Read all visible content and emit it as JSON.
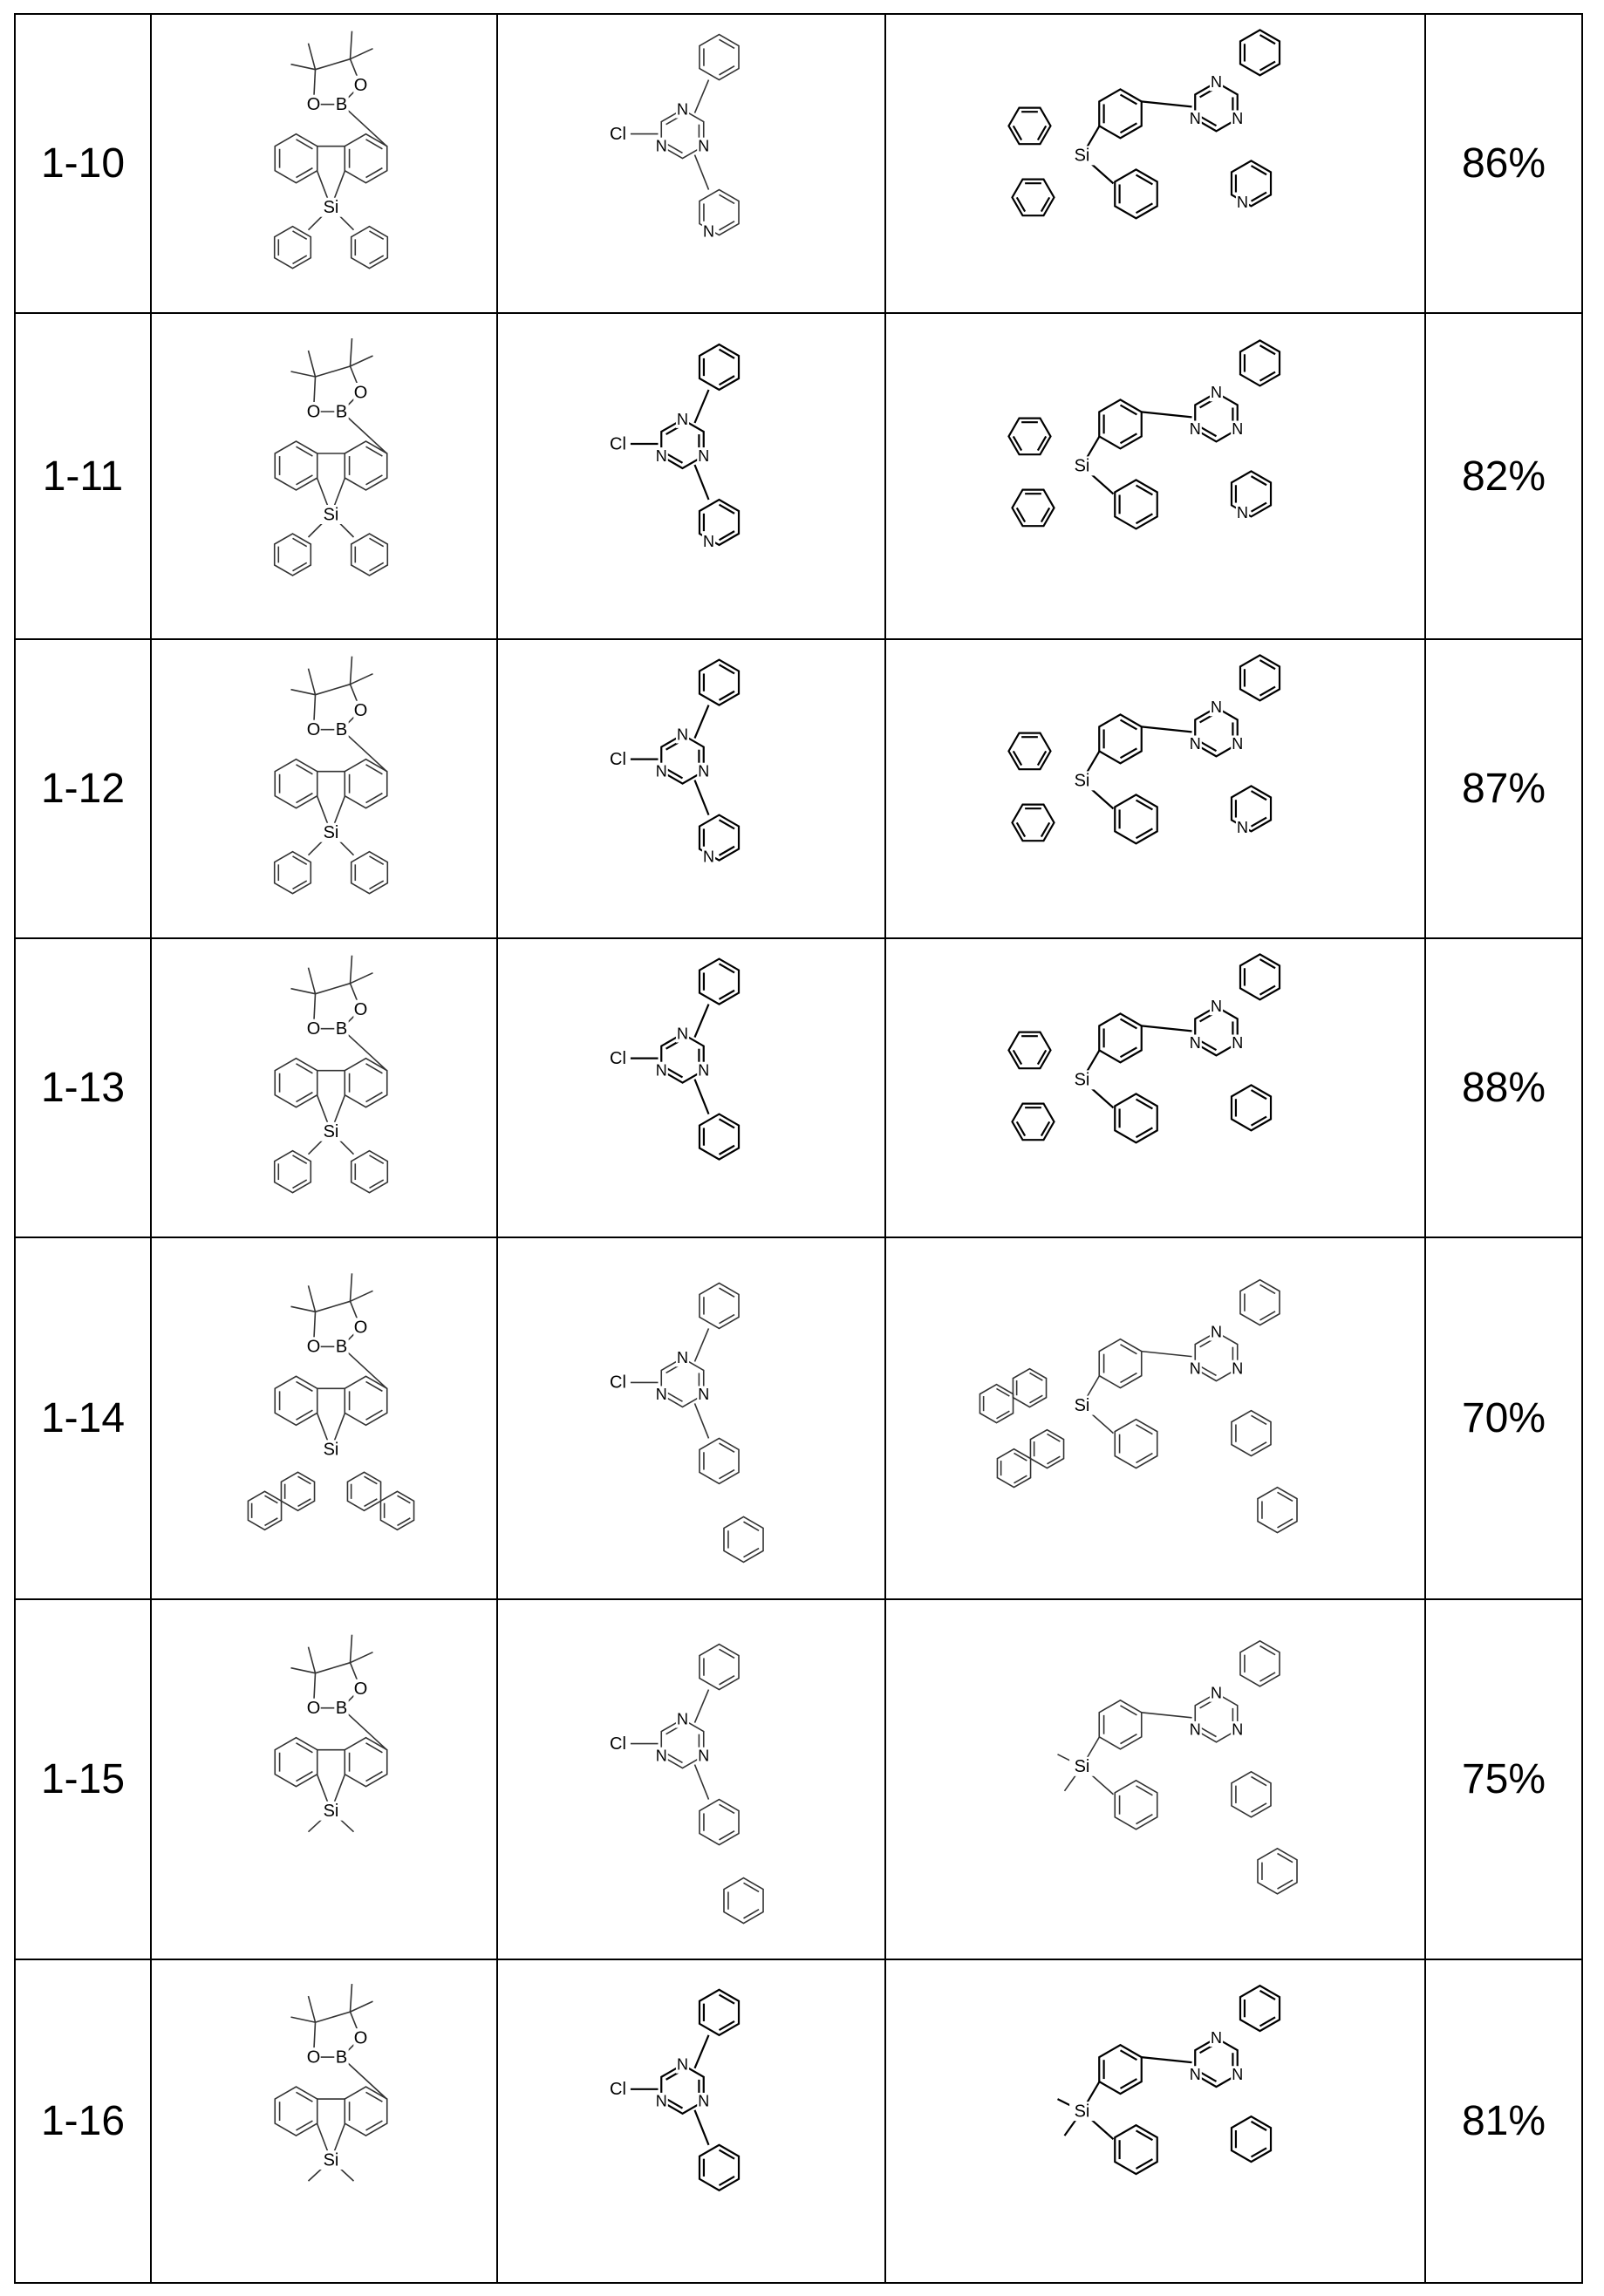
{
  "rows": [
    {
      "id": "1-10",
      "yield": "86%",
      "sub": "Ph2",
      "cl_sub": "2-pyridyl",
      "prod_dark": true,
      "reag_dark": false
    },
    {
      "id": "1-11",
      "yield": "82%",
      "sub": "Ph2",
      "cl_sub": "3-pyridyl",
      "prod_dark": true,
      "reag_dark": true
    },
    {
      "id": "1-12",
      "yield": "87%",
      "sub": "Ph2",
      "cl_sub": "4-pyridyl",
      "prod_dark": true,
      "reag_dark": true
    },
    {
      "id": "1-13",
      "yield": "88%",
      "sub": "Ph2",
      "cl_sub": "phenyl",
      "prod_dark": true,
      "reag_dark": true
    },
    {
      "id": "1-14",
      "yield": "70%",
      "sub": "naphthyl2",
      "cl_sub": "biphenyl",
      "prod_dark": false,
      "reag_dark": false
    },
    {
      "id": "1-15",
      "yield": "75%",
      "sub": "Me2",
      "cl_sub": "biphenyl",
      "prod_dark": false,
      "reag_dark": false
    },
    {
      "id": "1-16",
      "yield": "81%",
      "sub": "Me2",
      "cl_sub": "phenyl",
      "prod_dark": true,
      "reag_dark": true
    }
  ],
  "labels": {
    "B": "B",
    "O": "O",
    "Si": "Si",
    "N": "N",
    "Cl": "Cl"
  }
}
